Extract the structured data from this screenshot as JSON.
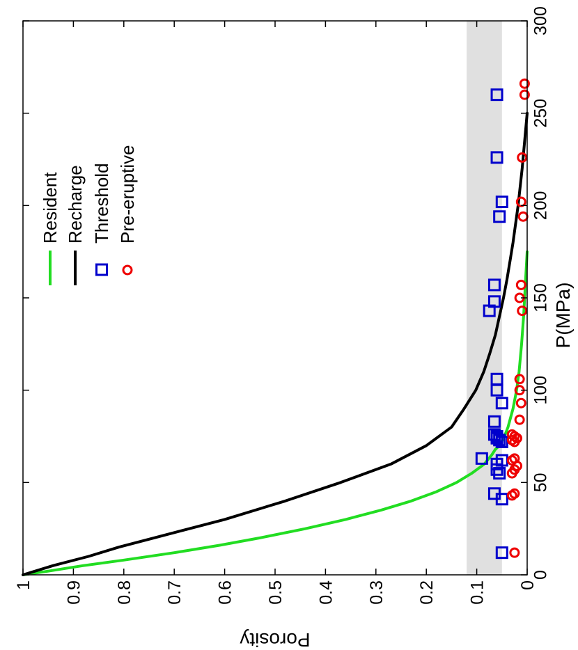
{
  "chart_data": {
    "type": "scatter",
    "xlabel": "P(MPa)",
    "ylabel": "Porosity",
    "xlim": [
      0,
      300
    ],
    "ylim": [
      0,
      1
    ],
    "x_ticks": [
      0,
      50,
      100,
      150,
      200,
      250,
      300
    ],
    "y_ticks": [
      0,
      0.1,
      0.2,
      0.3,
      0.4,
      0.5,
      0.6,
      0.7,
      0.8,
      0.9,
      1
    ],
    "y_tick_labels": [
      "0",
      "0.1",
      "0.2",
      "0.3",
      "0.4",
      "0.5",
      "0.6",
      "0.7",
      "0.8",
      "0.9",
      "1"
    ],
    "orientation": "rotated-90-clockwise",
    "grid": false,
    "legend_position": "upper-right",
    "shaded_band": {
      "y_range": [
        0.05,
        0.12
      ],
      "color": "#e0e0e0"
    },
    "series": [
      {
        "name": "Resident",
        "kind": "line",
        "color": "#22dd22",
        "x": [
          0,
          2,
          5,
          8,
          12,
          16,
          20,
          25,
          30,
          35,
          40,
          45,
          50,
          55,
          60,
          65,
          68,
          70,
          75,
          80,
          90,
          100,
          110,
          125,
          140,
          160,
          175
        ],
        "y": [
          1.0,
          0.95,
          0.88,
          0.8,
          0.7,
          0.61,
          0.53,
          0.44,
          0.36,
          0.29,
          0.23,
          0.18,
          0.14,
          0.11,
          0.085,
          0.07,
          0.063,
          0.055,
          0.045,
          0.038,
          0.028,
          0.021,
          0.016,
          0.011,
          0.007,
          0.003,
          0.0
        ]
      },
      {
        "name": "Recharge",
        "kind": "line",
        "color": "#000000",
        "x": [
          0,
          5,
          10,
          15,
          20,
          30,
          40,
          50,
          60,
          70,
          80,
          90,
          100,
          110,
          120,
          130,
          140,
          150,
          160,
          170,
          180,
          200,
          220,
          250
        ],
        "y": [
          1.0,
          0.94,
          0.87,
          0.81,
          0.74,
          0.6,
          0.48,
          0.37,
          0.27,
          0.2,
          0.15,
          0.125,
          0.102,
          0.086,
          0.074,
          0.063,
          0.055,
          0.047,
          0.04,
          0.034,
          0.028,
          0.018,
          0.01,
          0.0
        ]
      },
      {
        "name": "Threshold",
        "kind": "marker",
        "marker": "square",
        "color": "#0000cc",
        "x": [
          12,
          41,
          44,
          55,
          57,
          60,
          62,
          63,
          72,
          73,
          74,
          75,
          76,
          83,
          93,
          100,
          106,
          143,
          148,
          157,
          194,
          202,
          226,
          260
        ],
        "y": [
          0.05,
          0.05,
          0.065,
          0.055,
          0.06,
          0.06,
          0.05,
          0.09,
          0.05,
          0.055,
          0.06,
          0.06,
          0.065,
          0.065,
          0.05,
          0.06,
          0.06,
          0.075,
          0.065,
          0.065,
          0.055,
          0.05,
          0.06,
          0.06
        ]
      },
      {
        "name": "Pre-eruptive",
        "kind": "marker",
        "marker": "circle",
        "color": "#ee0000",
        "x": [
          12,
          43,
          44,
          55,
          57,
          59,
          62,
          63,
          72,
          73,
          74,
          75,
          76,
          84,
          93,
          100,
          106,
          143,
          150,
          157,
          194,
          202,
          226,
          260,
          266
        ],
        "y": [
          0.025,
          0.03,
          0.025,
          0.03,
          0.025,
          0.02,
          0.03,
          0.025,
          0.025,
          0.03,
          0.02,
          0.025,
          0.03,
          0.015,
          0.012,
          0.015,
          0.015,
          0.01,
          0.015,
          0.012,
          0.008,
          0.012,
          0.01,
          0.005,
          0.005
        ]
      }
    ]
  }
}
